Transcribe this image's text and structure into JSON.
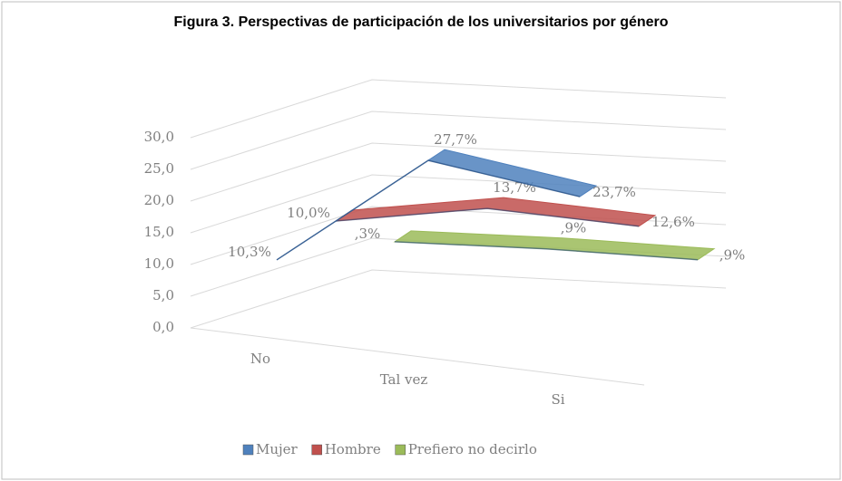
{
  "chart_data": {
    "type": "line3d",
    "title": "Figura 3. Perspectivas de participación de los universitarios por género",
    "categories": [
      "No",
      "Tal vez",
      "Si"
    ],
    "series": [
      {
        "name": "Mujer",
        "color": "#4f81bd",
        "values": [
          10.3,
          27.7,
          23.7
        ],
        "value_labels": [
          "10,3%",
          "27,7%",
          "23,7%"
        ]
      },
      {
        "name": "Hombre",
        "color": "#c0504d",
        "values": [
          10.0,
          13.7,
          12.6
        ],
        "value_labels": [
          "10,0%",
          "13,7%",
          "12,6%"
        ]
      },
      {
        "name": "Prefiero no decirlo",
        "color": "#9bbb59",
        "values": [
          0.3,
          0.9,
          0.9
        ],
        "value_labels": [
          ",3%",
          ",9%",
          ",9%"
        ]
      }
    ],
    "ylim": [
      0,
      30
    ],
    "yticks": [
      {
        "value": 0,
        "label": "0,0"
      },
      {
        "value": 5,
        "label": "5,0"
      },
      {
        "value": 10,
        "label": "10,0"
      },
      {
        "value": 15,
        "label": "15,0"
      },
      {
        "value": 20,
        "label": "20,0"
      },
      {
        "value": 25,
        "label": "25,0"
      },
      {
        "value": 30,
        "label": "30,0"
      }
    ],
    "grid": true,
    "legend": "bottom"
  }
}
